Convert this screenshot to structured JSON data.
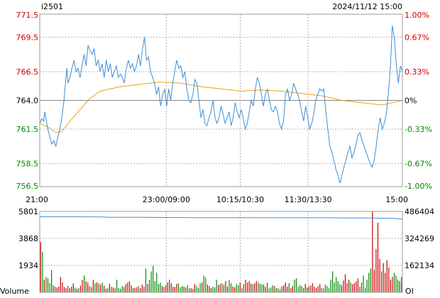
{
  "header": {
    "symbol": "i2501",
    "datetime": "2024/11/12 15:00"
  },
  "colors": {
    "up": "#cc0000",
    "down": "#008800",
    "neutral": "#000000",
    "price_line": "#3d8fd6",
    "avg_line": "#e8a317",
    "oi_line": "#3d8fd6",
    "grid": "#b0b0b0",
    "frame": "#999999"
  },
  "chart_data": [
    {
      "type": "line",
      "name": "price",
      "y_ticks": [
        {
          "value": 771.5,
          "label": "771.5",
          "pct": "1.00%",
          "tone": "up"
        },
        {
          "value": 769.5,
          "label": "769.5",
          "pct": "0.67%",
          "tone": "up"
        },
        {
          "value": 766.5,
          "label": "766.5",
          "pct": "0.33%",
          "tone": "up"
        },
        {
          "value": 764.0,
          "label": "764.0",
          "pct": "0%",
          "tone": "neutral"
        },
        {
          "value": 761.5,
          "label": "761.5",
          "pct": "-0.33%",
          "tone": "down"
        },
        {
          "value": 758.5,
          "label": "758.5",
          "pct": "-0.67%",
          "tone": "down"
        },
        {
          "value": 756.5,
          "label": "756.5",
          "pct": "-1.00%",
          "tone": "down"
        }
      ],
      "x_labels": [
        "21:00",
        "23:00/09:00",
        "10:15/10:30",
        "11:30/13:30",
        "15:00"
      ],
      "price_points": [
        [
          0,
          762
        ],
        [
          2,
          762.4
        ],
        [
          4,
          762.2
        ],
        [
          5,
          763
        ],
        [
          6,
          762.5
        ],
        [
          8,
          761.5
        ],
        [
          10,
          760.8
        ],
        [
          12,
          760.2
        ],
        [
          14,
          760.5
        ],
        [
          16,
          760
        ],
        [
          18,
          760.8
        ],
        [
          20,
          761.5
        ],
        [
          22,
          762.5
        ],
        [
          24,
          764
        ],
        [
          26,
          766
        ],
        [
          27,
          766.8
        ],
        [
          28,
          765.5
        ],
        [
          30,
          766
        ],
        [
          32,
          766.8
        ],
        [
          34,
          767.5
        ],
        [
          36,
          766.5
        ],
        [
          38,
          766.8
        ],
        [
          40,
          766
        ],
        [
          42,
          767
        ],
        [
          44,
          768
        ],
        [
          46,
          767
        ],
        [
          48,
          768.8
        ],
        [
          50,
          768.3
        ],
        [
          52,
          768
        ],
        [
          54,
          768.5
        ],
        [
          56,
          767
        ],
        [
          58,
          767.5
        ],
        [
          60,
          766.5
        ],
        [
          62,
          767.2
        ],
        [
          64,
          766
        ],
        [
          66,
          767.5
        ],
        [
          68,
          766.5
        ],
        [
          70,
          767.2
        ],
        [
          72,
          766
        ],
        [
          74,
          766.5
        ],
        [
          76,
          767
        ],
        [
          78,
          766
        ],
        [
          80,
          766.3
        ],
        [
          82,
          766
        ],
        [
          84,
          765.5
        ],
        [
          86,
          766.8
        ],
        [
          88,
          767.5
        ],
        [
          90,
          766.8
        ],
        [
          92,
          767.2
        ],
        [
          94,
          766.5
        ],
        [
          96,
          767
        ],
        [
          98,
          768
        ],
        [
          100,
          767
        ],
        [
          102,
          768.5
        ],
        [
          104,
          769.5
        ],
        [
          106,
          767.5
        ],
        [
          108,
          767.8
        ],
        [
          110,
          766.5
        ],
        [
          112,
          766
        ],
        [
          114,
          765.5
        ],
        [
          116,
          764.5
        ],
        [
          118,
          765.2
        ],
        [
          120,
          763.5
        ],
        [
          122,
          764.5
        ],
        [
          124,
          765
        ],
        [
          126,
          763.5
        ],
        [
          128,
          765
        ],
        [
          130,
          764
        ],
        [
          132,
          765.5
        ],
        [
          134,
          766.5
        ],
        [
          136,
          767.5
        ],
        [
          138,
          766.8
        ],
        [
          140,
          767
        ],
        [
          142,
          766
        ],
        [
          144,
          766.5
        ],
        [
          146,
          765
        ],
        [
          148,
          764
        ],
        [
          150,
          763.8
        ],
        [
          152,
          764.5
        ],
        [
          154,
          765.8
        ],
        [
          156,
          765.5
        ],
        [
          158,
          764
        ],
        [
          160,
          762.5
        ],
        [
          162,
          763.2
        ],
        [
          164,
          762
        ],
        [
          166,
          761.8
        ],
        [
          168,
          762.5
        ],
        [
          170,
          763
        ],
        [
          172,
          764
        ],
        [
          174,
          762.5
        ],
        [
          176,
          762
        ],
        [
          178,
          762.5
        ],
        [
          180,
          763.5
        ],
        [
          182,
          762.8
        ],
        [
          184,
          762
        ],
        [
          186,
          762.5
        ],
        [
          188,
          763
        ],
        [
          190,
          761.8
        ],
        [
          192,
          762.5
        ],
        [
          194,
          763.8
        ],
        [
          196,
          763
        ],
        [
          198,
          762.5
        ],
        [
          200,
          763.2
        ],
        [
          202,
          762.5
        ],
        [
          204,
          761.5
        ],
        [
          206,
          762
        ],
        [
          208,
          763
        ],
        [
          210,
          764
        ],
        [
          212,
          763.5
        ],
        [
          214,
          765
        ],
        [
          216,
          766
        ],
        [
          218,
          765.5
        ],
        [
          220,
          764.5
        ],
        [
          222,
          763.5
        ],
        [
          224,
          764.5
        ],
        [
          226,
          765
        ],
        [
          228,
          764
        ],
        [
          230,
          763.2
        ],
        [
          232,
          763
        ],
        [
          234,
          763.5
        ],
        [
          236,
          763
        ],
        [
          238,
          762
        ],
        [
          240,
          761.5
        ],
        [
          242,
          762.2
        ],
        [
          244,
          764.5
        ],
        [
          246,
          765
        ],
        [
          248,
          764
        ],
        [
          250,
          764.5
        ],
        [
          252,
          765.5
        ],
        [
          254,
          765
        ],
        [
          256,
          764.5
        ],
        [
          258,
          764
        ],
        [
          260,
          763
        ],
        [
          262,
          762.2
        ],
        [
          264,
          763.5
        ],
        [
          266,
          762.5
        ],
        [
          268,
          761.5
        ],
        [
          270,
          762
        ],
        [
          272,
          762.8
        ],
        [
          274,
          764
        ],
        [
          276,
          764.5
        ],
        [
          278,
          765
        ],
        [
          280,
          764.8
        ],
        [
          282,
          765
        ],
        [
          284,
          763
        ],
        [
          286,
          761.5
        ],
        [
          288,
          760
        ],
        [
          290,
          759.5
        ],
        [
          292,
          758.8
        ],
        [
          294,
          758
        ],
        [
          296,
          757.5
        ],
        [
          298,
          756.8
        ],
        [
          300,
          757.5
        ],
        [
          302,
          758.2
        ],
        [
          304,
          758.8
        ],
        [
          306,
          759.5
        ],
        [
          308,
          760
        ],
        [
          310,
          759
        ],
        [
          312,
          759.5
        ],
        [
          314,
          760.2
        ],
        [
          316,
          761
        ],
        [
          318,
          761.2
        ],
        [
          320,
          760.5
        ],
        [
          322,
          760
        ],
        [
          324,
          759.5
        ],
        [
          326,
          759
        ],
        [
          328,
          758.5
        ],
        [
          330,
          758.2
        ],
        [
          332,
          758.8
        ],
        [
          334,
          760
        ],
        [
          336,
          761.5
        ],
        [
          338,
          762.5
        ],
        [
          340,
          761.5
        ],
        [
          342,
          762
        ],
        [
          344,
          762.8
        ],
        [
          346,
          764.5
        ],
        [
          348,
          766.8
        ],
        [
          350,
          770.5
        ],
        [
          352,
          769.5
        ],
        [
          354,
          767
        ],
        [
          356,
          765.5
        ],
        [
          358,
          767
        ],
        [
          360,
          766.5
        ]
      ],
      "avg_points": [
        [
          0,
          762
        ],
        [
          10,
          761.6
        ],
        [
          16,
          761.2
        ],
        [
          22,
          761.3
        ],
        [
          30,
          762.2
        ],
        [
          40,
          763.2
        ],
        [
          50,
          764.2
        ],
        [
          60,
          764.8
        ],
        [
          70,
          765
        ],
        [
          80,
          765.2
        ],
        [
          100,
          765.4
        ],
        [
          120,
          765.6
        ],
        [
          140,
          765.5
        ],
        [
          160,
          765.2
        ],
        [
          180,
          765
        ],
        [
          200,
          764.8
        ],
        [
          220,
          764.9
        ],
        [
          240,
          764.8
        ],
        [
          260,
          764.6
        ],
        [
          280,
          764.4
        ],
        [
          300,
          764
        ],
        [
          320,
          763.8
        ],
        [
          340,
          763.6
        ],
        [
          350,
          763.8
        ],
        [
          360,
          764
        ]
      ]
    },
    {
      "type": "bar",
      "name": "volume",
      "y_ticks": [
        {
          "value": 5801,
          "label": "5801",
          "oi": "486404"
        },
        {
          "value": 3868,
          "label": "3868",
          "oi": "324269"
        },
        {
          "value": 1934,
          "label": "1934",
          "oi": "162134"
        }
      ],
      "left_caption": "Volume",
      "right_caption": "OI",
      "volumes": [
        3600,
        2900,
        900,
        1100,
        1000,
        650,
        1600,
        500,
        400,
        350,
        420,
        1100,
        700,
        380,
        300,
        450,
        300,
        400,
        650,
        350,
        260,
        300,
        480,
        900,
        1200,
        800,
        700,
        450,
        380,
        900,
        650,
        720,
        640,
        550,
        700,
        480,
        260,
        300,
        620,
        400,
        350,
        280,
        900,
        300,
        260,
        450,
        380,
        600,
        700,
        800,
        500,
        300,
        330,
        360,
        450,
        300,
        550,
        400,
        1700,
        600,
        900,
        1500,
        1900,
        800,
        1400,
        600,
        700,
        450,
        380,
        520,
        700,
        900,
        650,
        400,
        380,
        600,
        650,
        360,
        450,
        400,
        350,
        500,
        280,
        300,
        250,
        600,
        450,
        320,
        650,
        700,
        1200,
        1050,
        560,
        450,
        300,
        400,
        350,
        900,
        520,
        600,
        650,
        540,
        800,
        400,
        880,
        650,
        420,
        360,
        600,
        500,
        700,
        300,
        580,
        900,
        700,
        800,
        620,
        580,
        650,
        800,
        700,
        600,
        580,
        560,
        400,
        700,
        280,
        350,
        500,
        450,
        300,
        300,
        200,
        420,
        500,
        700,
        400,
        650,
        300,
        450,
        900,
        1000,
        400,
        500,
        450,
        300,
        600,
        350,
        420,
        500,
        650,
        400,
        300,
        450,
        600,
        300,
        280,
        560,
        450,
        300,
        900,
        1500,
        700,
        1100,
        800,
        600,
        500,
        850,
        1300,
        650,
        900,
        700,
        580,
        660,
        800,
        1000,
        400,
        700,
        1200,
        300,
        900,
        1400,
        1700,
        5800,
        1600,
        3100,
        5000,
        2400,
        1500,
        2100,
        1400,
        2300,
        1800,
        900,
        1100,
        1400,
        1200,
        900,
        800,
        1100
      ],
      "oi_points": [
        [
          0,
          5420
        ],
        [
          60,
          5410
        ],
        [
          70,
          5380
        ],
        [
          100,
          5380
        ],
        [
          150,
          5360
        ],
        [
          200,
          5355
        ],
        [
          240,
          5350
        ],
        [
          280,
          5350
        ],
        [
          300,
          5340
        ],
        [
          330,
          5330
        ],
        [
          340,
          5320
        ],
        [
          350,
          5300
        ],
        [
          355,
          5280
        ],
        [
          360,
          5260
        ]
      ]
    }
  ]
}
